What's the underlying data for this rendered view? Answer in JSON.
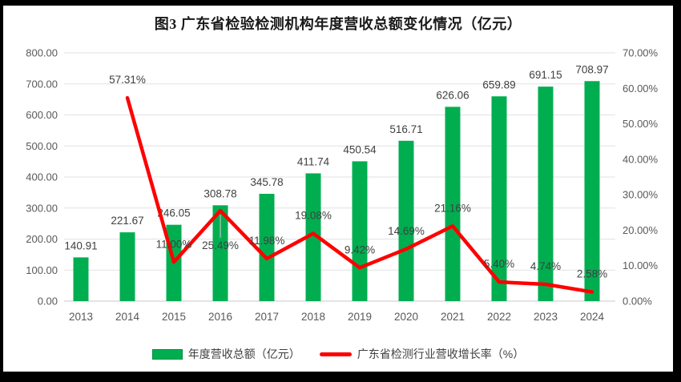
{
  "chart_data": {
    "type": "combo",
    "title": "图3 广东省检验检测机构年度营收总额变化情况（亿元）",
    "categories": [
      "2013",
      "2014",
      "2015",
      "2016",
      "2017",
      "2018",
      "2019",
      "2020",
      "2021",
      "2022",
      "2023",
      "2024"
    ],
    "series": [
      {
        "name": "年度营收总额（亿元）",
        "type": "bar",
        "color": "#00AE50",
        "values": [
          140.91,
          221.67,
          246.05,
          308.78,
          345.78,
          411.74,
          450.54,
          516.71,
          626.06,
          659.89,
          691.15,
          708.97
        ],
        "labels": [
          "140.91",
          "221.67",
          "246.05",
          "308.78",
          "345.78",
          "411.74",
          "450.54",
          "516.71",
          "626.06",
          "659.89",
          "691.15",
          "708.97"
        ]
      },
      {
        "name": "广东省检测行业营收增长率（%）",
        "type": "line",
        "color": "#FF0000",
        "values": [
          null,
          57.31,
          11.0,
          25.49,
          11.98,
          19.08,
          9.42,
          14.69,
          21.16,
          5.4,
          4.74,
          2.58
        ],
        "labels": [
          null,
          "57.31%",
          "11.00%",
          "25.49%",
          "11.98%",
          "19.08%",
          "9.42%",
          "14.69%",
          "21.16%",
          "5.40%",
          "4.74%",
          "2.58%"
        ]
      }
    ],
    "left_axis": {
      "min": 0,
      "max": 800,
      "step": 100,
      "tick_labels": [
        "0.00",
        "100.00",
        "200.00",
        "300.00",
        "400.00",
        "500.00",
        "600.00",
        "700.00",
        "800.00"
      ]
    },
    "right_axis": {
      "min": 0,
      "max": 70,
      "step": 10,
      "tick_labels": [
        "0.00%",
        "10.00%",
        "20.00%",
        "30.00%",
        "40.00%",
        "50.00%",
        "60.00%",
        "70.00%"
      ]
    },
    "layout": {
      "grid": true,
      "legend_position": "bottom",
      "below_label_indices": [
        3
      ],
      "gridline_color": "#E2E2E2",
      "baseline_color": "#C9C9C9",
      "tick_text_color": "#595959",
      "data_label_color": "#404040"
    }
  }
}
